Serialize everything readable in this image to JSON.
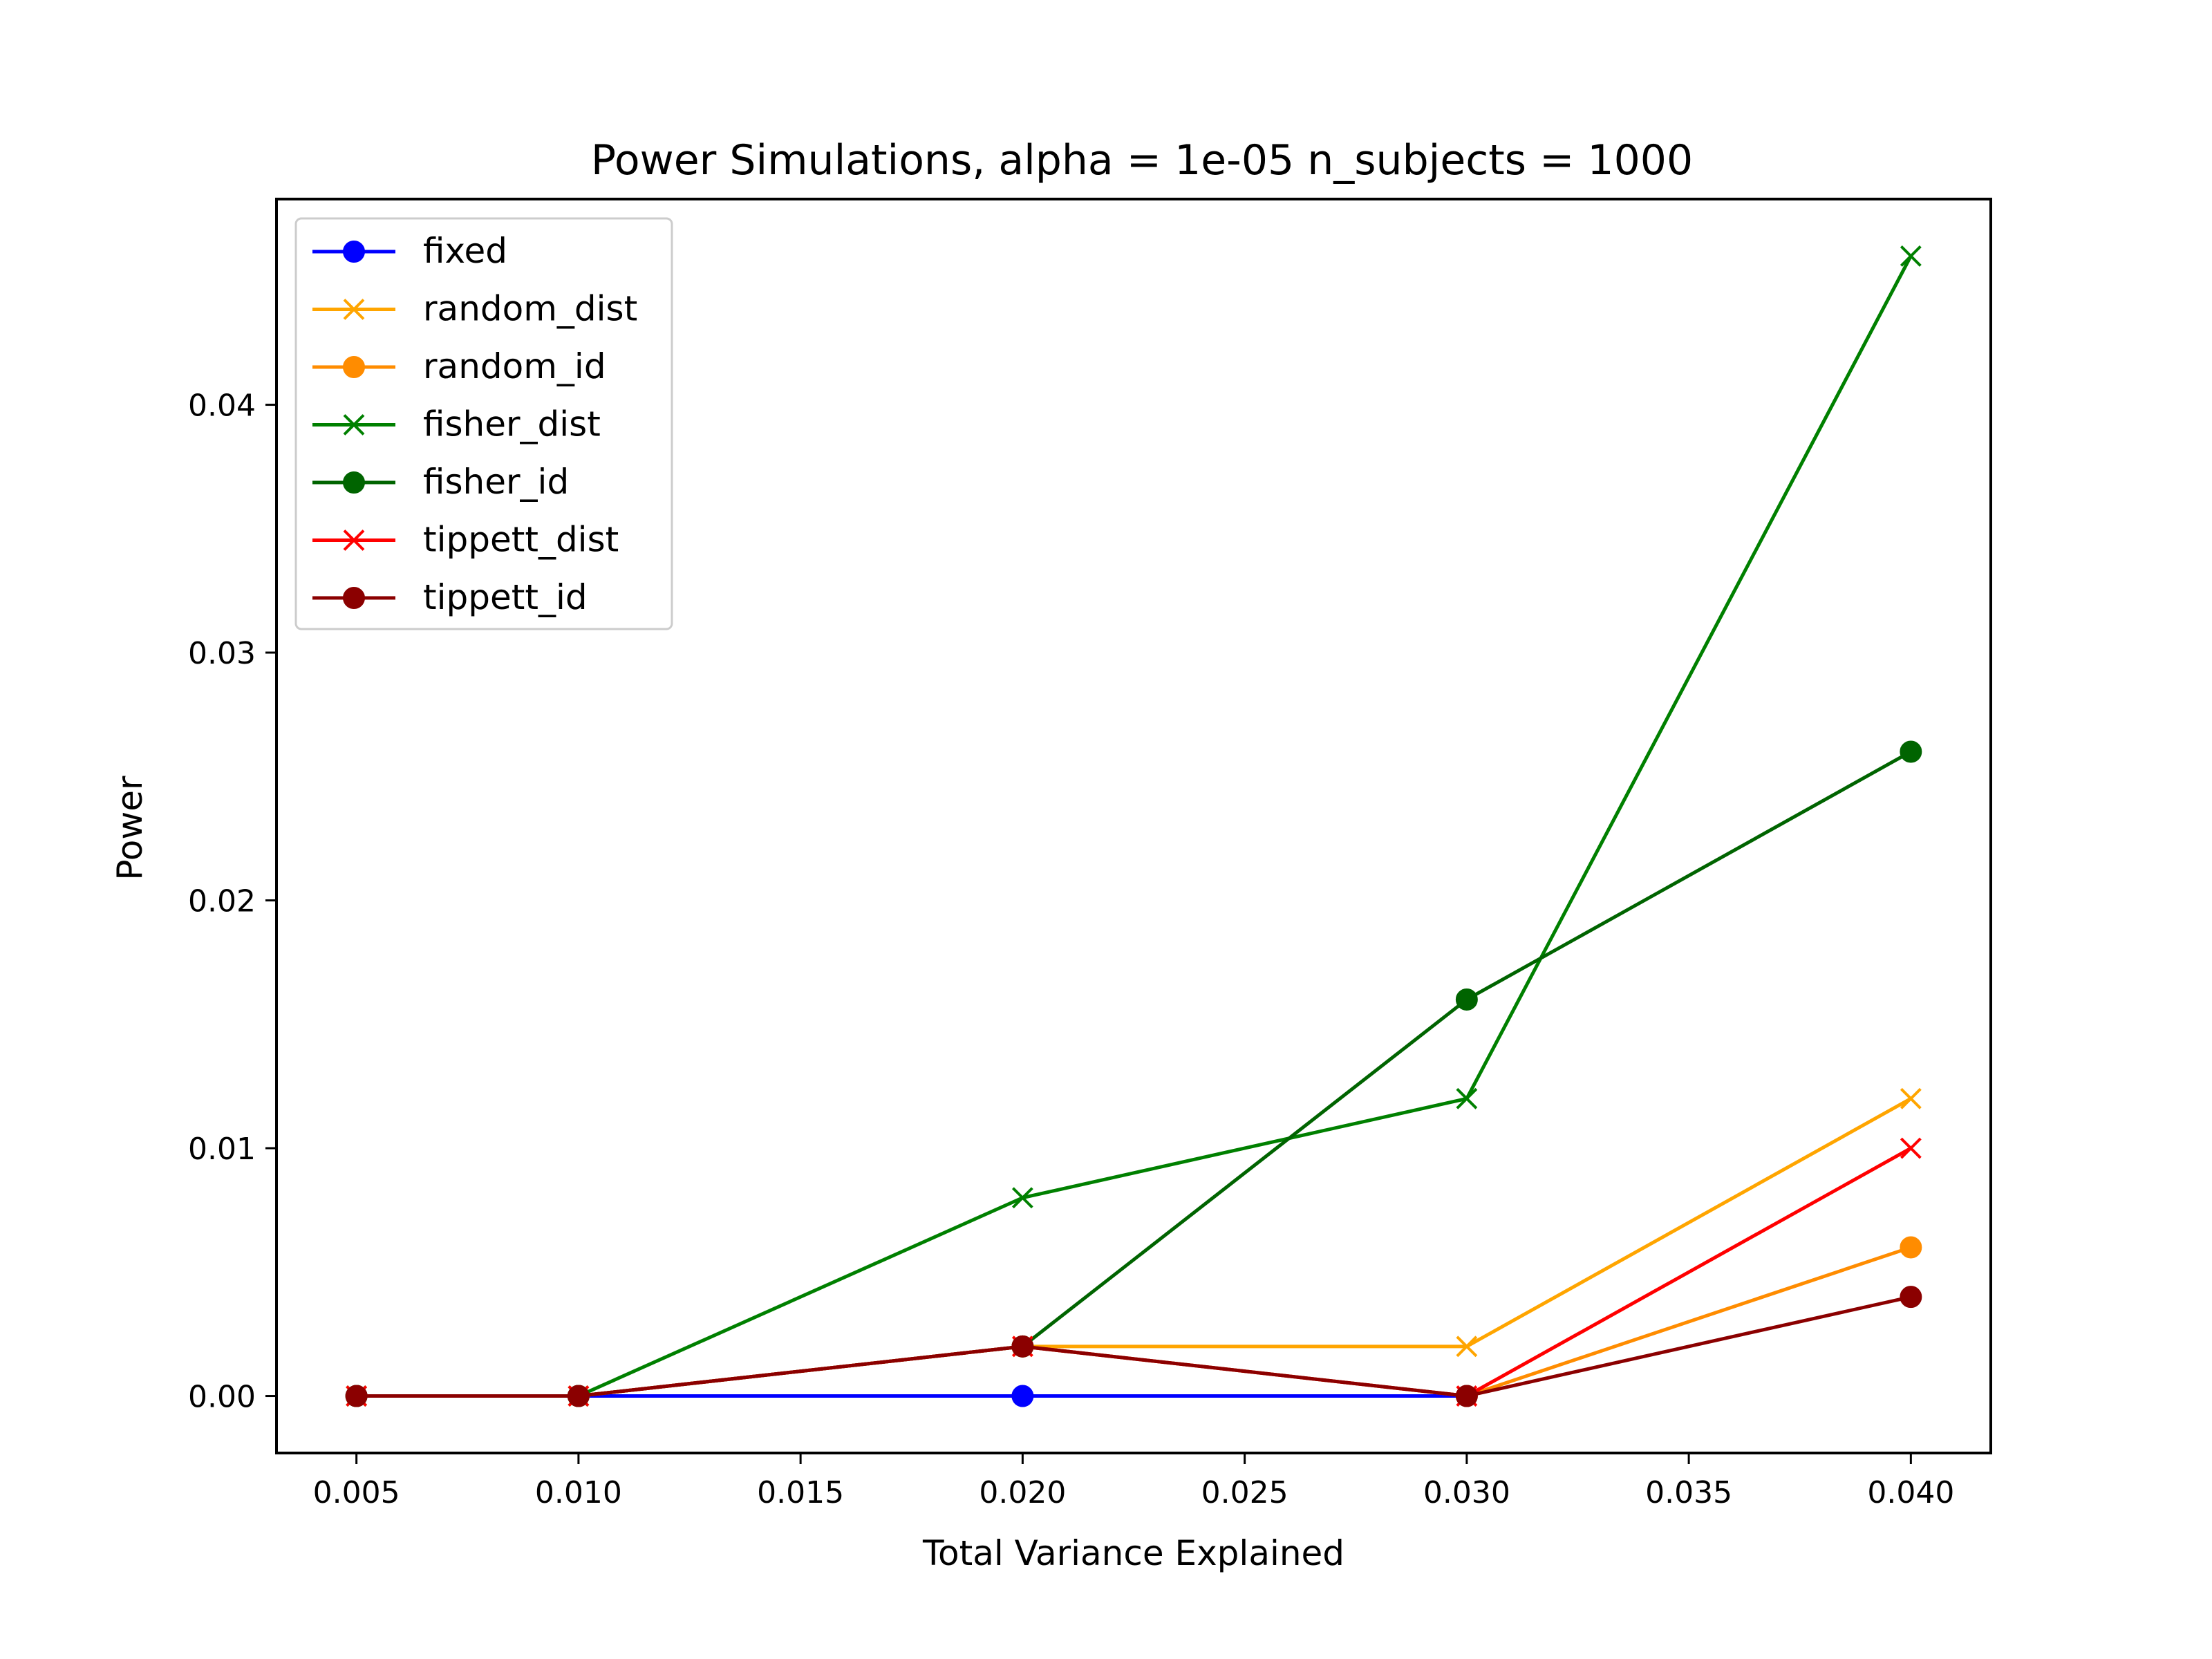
{
  "chart_data": {
    "type": "line",
    "title": "Power Simulations, alpha = 1e-05 n_subjects = 1000",
    "xlabel": "Total Variance Explained",
    "ylabel": "Power",
    "xlim": [
      0.0032,
      0.0418
    ],
    "ylim": [
      -0.0023,
      0.0483
    ],
    "xticks": [
      0.005,
      0.01,
      0.015,
      0.02,
      0.025,
      0.03,
      0.035,
      0.04
    ],
    "xtick_labels": [
      "0.005",
      "0.010",
      "0.015",
      "0.020",
      "0.025",
      "0.030",
      "0.035",
      "0.040"
    ],
    "yticks": [
      0.0,
      0.01,
      0.02,
      0.03,
      0.04
    ],
    "ytick_labels": [
      "0.00",
      "0.01",
      "0.02",
      "0.03",
      "0.04"
    ],
    "grid": false,
    "legend_position": "top-left",
    "x": [
      0.005,
      0.01,
      0.02,
      0.03,
      0.04
    ],
    "series": [
      {
        "name": "fixed",
        "color": "#0000ff",
        "marker": "circle",
        "values": [
          0.0,
          0.0,
          0.0,
          0.0,
          null
        ]
      },
      {
        "name": "random_dist",
        "color": "#ffa500",
        "marker": "x",
        "values": [
          0.0,
          0.0,
          0.002,
          0.002,
          0.012
        ]
      },
      {
        "name": "random_id",
        "color": "#ff8c00",
        "marker": "circle",
        "values": [
          0.0,
          0.0,
          0.002,
          0.0,
          0.006
        ]
      },
      {
        "name": "fisher_dist",
        "color": "#008000",
        "marker": "x",
        "values": [
          0.0,
          0.0,
          0.008,
          0.012,
          0.046
        ]
      },
      {
        "name": "fisher_id",
        "color": "#006400",
        "marker": "circle",
        "values": [
          0.0,
          0.0,
          0.002,
          0.016,
          0.026
        ]
      },
      {
        "name": "tippett_dist",
        "color": "#ff0000",
        "marker": "x",
        "values": [
          0.0,
          0.0,
          0.002,
          0.0,
          0.01
        ]
      },
      {
        "name": "tippett_id",
        "color": "#8b0000",
        "marker": "circle",
        "values": [
          0.0,
          0.0,
          0.002,
          0.0,
          0.004
        ]
      }
    ]
  }
}
